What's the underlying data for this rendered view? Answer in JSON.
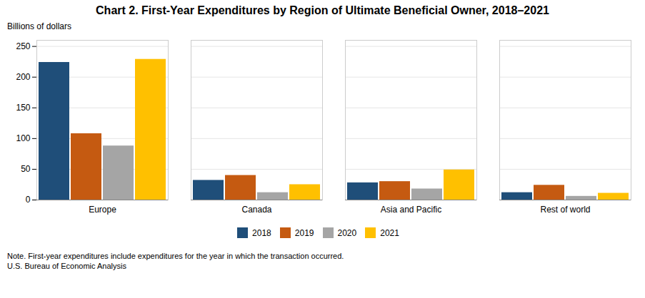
{
  "chart_data": {
    "type": "bar",
    "title": "Chart 2. First-Year Expenditures by Region of Ultimate Beneficial Owner, 2018–2021",
    "ylabel": "Billions of dollars",
    "categories": [
      "Europe",
      "Canada",
      "Asia and Pacific",
      "Rest of world"
    ],
    "series": [
      {
        "name": "2018",
        "color": "#1F4E79",
        "values": [
          224,
          32,
          28,
          12
        ]
      },
      {
        "name": "2019",
        "color": "#C55A11",
        "values": [
          108,
          40,
          30,
          24
        ]
      },
      {
        "name": "2020",
        "color": "#A5A5A5",
        "values": [
          88,
          12,
          18,
          6
        ]
      },
      {
        "name": "2021",
        "color": "#FFC000",
        "values": [
          229,
          25,
          49,
          11
        ]
      }
    ],
    "ylim": [
      0,
      260
    ],
    "yticks": [
      0,
      50,
      100,
      150,
      200,
      250
    ],
    "grid": true,
    "legend": "bottom",
    "annotations": [
      "Note. First-year expenditures include expenditures for the year in which the transaction occurred.",
      "U.S. Bureau of Economic Analysis"
    ]
  }
}
